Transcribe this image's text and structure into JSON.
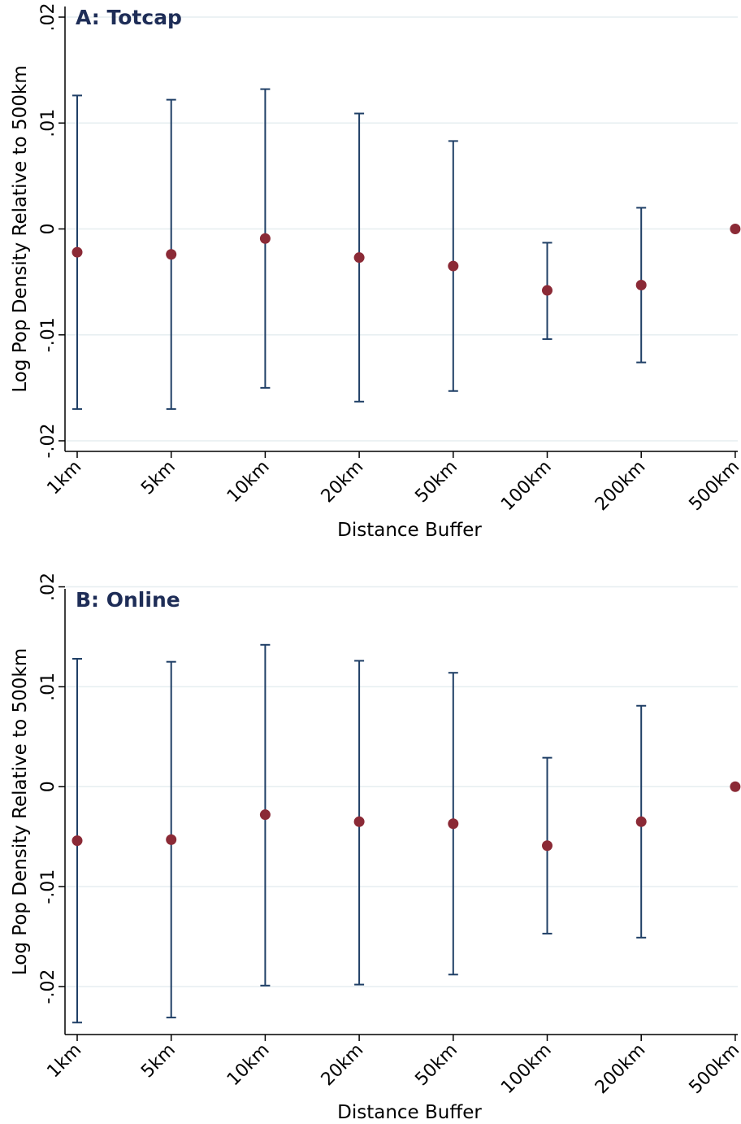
{
  "colors": {
    "point": "#8b2a36",
    "ci": "#1f3f66",
    "grid": "#e6eef0",
    "title": "#1e2d57",
    "axis": "#000000"
  },
  "chart_data": [
    {
      "type": "scatter",
      "title": "A: Totcap",
      "xlabel": "Distance Buffer",
      "ylabel": "Log Pop Density Relative to 500km",
      "categories": [
        "1km",
        "5km",
        "10km",
        "20km",
        "50km",
        "100km",
        "200km",
        "500km"
      ],
      "values": [
        -0.0022,
        -0.0024,
        -0.0009,
        -0.0027,
        -0.0035,
        -0.0058,
        -0.0053,
        0
      ],
      "ci_low": [
        -0.017,
        -0.017,
        -0.015,
        -0.0163,
        -0.0153,
        -0.0104,
        -0.0126,
        null
      ],
      "ci_high": [
        0.0126,
        0.0122,
        0.0132,
        0.0109,
        0.0083,
        -0.0013,
        0.002,
        null
      ],
      "ylim": [
        -0.021,
        0.021
      ],
      "yticks": [
        0.02,
        0.01,
        0,
        -0.01,
        -0.02
      ],
      "ytick_labels": [
        ".02",
        ".01",
        "0",
        "-.01",
        "-.02"
      ],
      "grid": true
    },
    {
      "type": "scatter",
      "title": "B: Online",
      "xlabel": "Distance Buffer",
      "ylabel": "Log Pop Density Relative to 500km",
      "categories": [
        "1km",
        "5km",
        "10km",
        "20km",
        "50km",
        "100km",
        "200km",
        "500km"
      ],
      "values": [
        -0.0054,
        -0.0053,
        -0.0028,
        -0.0035,
        -0.0037,
        -0.0059,
        -0.0035,
        0
      ],
      "ci_low": [
        -0.0236,
        -0.0231,
        -0.0199,
        -0.0198,
        -0.0188,
        -0.0147,
        -0.0151,
        null
      ],
      "ci_high": [
        0.0128,
        0.0125,
        0.0142,
        0.0126,
        0.0114,
        0.0029,
        0.0081,
        null
      ],
      "ylim": [
        -0.0248,
        0.0198
      ],
      "yticks": [
        0.02,
        0.01,
        0,
        -0.01,
        -0.02
      ],
      "ytick_labels": [
        ".02",
        ".01",
        "0",
        "-.01",
        "-.02"
      ],
      "grid": true
    }
  ]
}
